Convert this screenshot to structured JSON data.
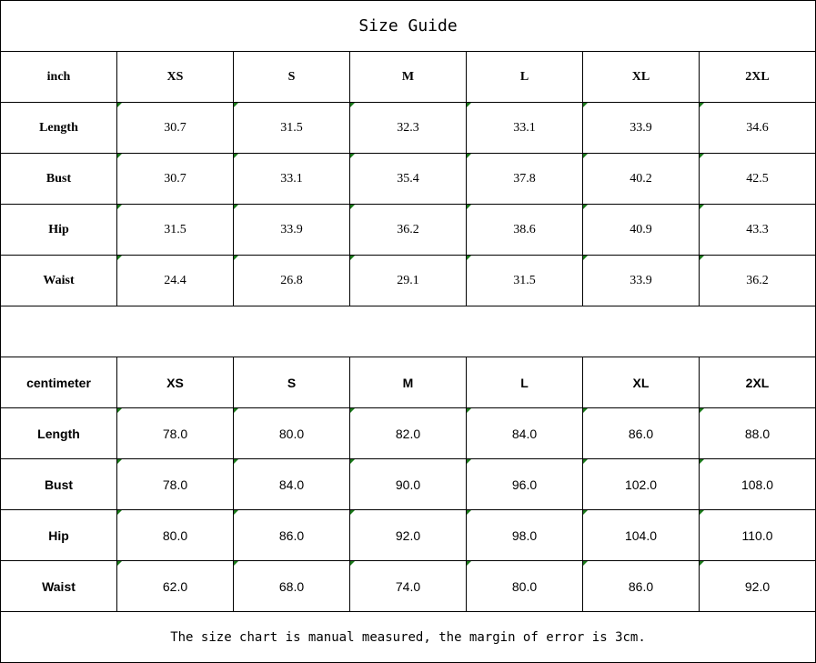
{
  "title": "Size Guide",
  "inch_table": {
    "unit": "inch",
    "sizes": [
      "XS",
      "S",
      "M",
      "L",
      "XL",
      "2XL"
    ],
    "rows": [
      {
        "label": "Length",
        "values": [
          "30.7",
          "31.5",
          "32.3",
          "33.1",
          "33.9",
          "34.6"
        ]
      },
      {
        "label": "Bust",
        "values": [
          "30.7",
          "33.1",
          "35.4",
          "37.8",
          "40.2",
          "42.5"
        ]
      },
      {
        "label": "Hip",
        "values": [
          "31.5",
          "33.9",
          "36.2",
          "38.6",
          "40.9",
          "43.3"
        ]
      },
      {
        "label": "Waist",
        "values": [
          "24.4",
          "26.8",
          "29.1",
          "31.5",
          "33.9",
          "36.2"
        ]
      }
    ]
  },
  "cm_table": {
    "unit": "centimeter",
    "sizes": [
      "XS",
      "S",
      "M",
      "L",
      "XL",
      "2XL"
    ],
    "rows": [
      {
        "label": "Length",
        "values": [
          "78.0",
          "80.0",
          "82.0",
          "84.0",
          "86.0",
          "88.0"
        ]
      },
      {
        "label": "Bust",
        "values": [
          "78.0",
          "84.0",
          "90.0",
          "96.0",
          "102.0",
          "108.0"
        ]
      },
      {
        "label": "Hip",
        "values": [
          "80.0",
          "86.0",
          "92.0",
          "98.0",
          "104.0",
          "110.0"
        ]
      },
      {
        "label": "Waist",
        "values": [
          "62.0",
          "68.0",
          "74.0",
          "80.0",
          "86.0",
          "92.0"
        ]
      }
    ]
  },
  "note": "The size chart is manual measured, the margin of error is 3cm.",
  "colors": {
    "cell_marker": "#1a7a1a",
    "border": "#000000"
  }
}
